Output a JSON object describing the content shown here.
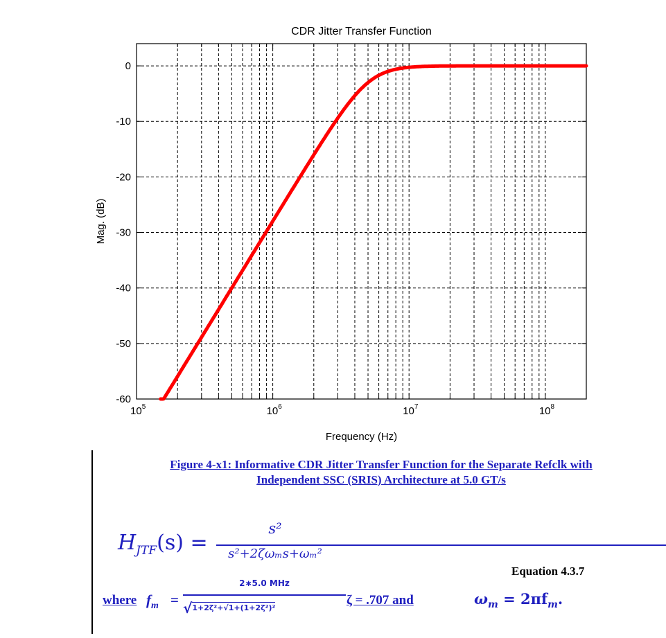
{
  "chart_data": {
    "type": "line",
    "title": "CDR Jitter Transfer Function",
    "xlabel": "Frequency (Hz)",
    "ylabel": "Mag. (dB)",
    "xscale": "log",
    "xlim": [
      100000,
      200000000
    ],
    "ylim": [
      -60,
      4
    ],
    "grid": true,
    "x_ticks": [
      {
        "value": 100000,
        "base": "10",
        "exp": "5"
      },
      {
        "value": 1000000,
        "base": "10",
        "exp": "6"
      },
      {
        "value": 10000000,
        "base": "10",
        "exp": "7"
      },
      {
        "value": 100000000,
        "base": "10",
        "exp": "8"
      }
    ],
    "y_ticks": [
      {
        "value": 0,
        "label": "0"
      },
      {
        "value": -10,
        "label": "-10"
      },
      {
        "value": -20,
        "label": "-20"
      },
      {
        "value": -30,
        "label": "-30"
      },
      {
        "value": -40,
        "label": "-40"
      },
      {
        "value": -50,
        "label": "-50"
      },
      {
        "value": -60,
        "label": "-60"
      }
    ],
    "series": [
      {
        "color": "#ff0000",
        "model": {
          "f_c_hz": 5000000,
          "zeta": 0.707
        },
        "x": [
          150000,
          200000,
          300000,
          500000,
          800000,
          1000000,
          1500000,
          2000000,
          3000000,
          4000000,
          5000000,
          6000000,
          7000000,
          8000000,
          10000000,
          20000000,
          50000000,
          100000000,
          200000000
        ],
        "y": [
          -59.1,
          -54.1,
          -47.0,
          -38.2,
          -30.0,
          -26.3,
          -19.0,
          -14.1,
          -8.0,
          -4.5,
          -2.3,
          -1.1,
          -0.5,
          -0.2,
          0.0,
          0.0,
          0.0,
          0.0,
          0.0
        ]
      }
    ]
  },
  "caption": {
    "line1": "Figure 4-x1:  Informative CDR Jitter Transfer Function for the Separate Refclk with",
    "line2": "Independent SSC (SRIS) Architecture at 5.0 GT/s"
  },
  "equation": {
    "lhs": "H",
    "lhs_sub": "JTF",
    "lhs_arg": "(s) =",
    "numerator": "s²",
    "denominator": "s²+2ζωₘs+ωₘ²",
    "number": "Equation 4.3.7"
  },
  "where_clause": {
    "where": "where",
    "fm": "f",
    "fm_sub": "m",
    "equals": "=",
    "fm_numerator": "2∗5.0 MHz",
    "fm_denominator": "1+2ζ²+√1+(1+2ζ²)²",
    "zeta_text": "ζ = .707 and",
    "omega_text": "ω",
    "omega_sub": "m",
    "omega_rhs": "= 2πf",
    "omega_rhs_sub": "m",
    "period": "."
  },
  "colors": {
    "curve": "#ff0000",
    "caption": "#1f1fbf",
    "grid": "#000000"
  }
}
